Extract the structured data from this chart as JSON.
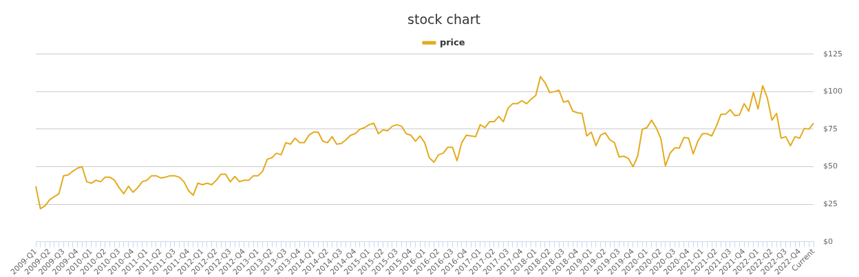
{
  "chart_data": {
    "type": "line",
    "title": "stock chart",
    "categories": [
      "2009-Q1",
      null,
      null,
      "2009-Q2",
      null,
      null,
      "2009-Q3",
      null,
      null,
      "2009-Q4",
      null,
      null,
      "2010-Q1",
      null,
      null,
      "2010-Q2",
      null,
      null,
      "2010-Q3",
      null,
      null,
      "2010-Q4",
      null,
      null,
      "2011-Q1",
      null,
      null,
      "2011-Q2",
      null,
      null,
      "2011-Q3",
      null,
      null,
      "2011-Q4",
      null,
      null,
      "2012-Q1",
      null,
      null,
      "2012-Q2",
      null,
      null,
      "2012-Q3",
      null,
      null,
      "2012-Q4",
      null,
      null,
      "2013-Q1",
      null,
      null,
      "2013-Q2",
      null,
      null,
      "2013-Q3",
      null,
      null,
      "2013-Q4",
      null,
      null,
      "2014-Q1",
      null,
      null,
      "2014-Q2",
      null,
      null,
      "2014-Q3",
      null,
      null,
      "2014-Q4",
      null,
      null,
      "2015-Q1",
      null,
      null,
      "2015-Q2",
      null,
      null,
      "2015-Q3",
      null,
      null,
      "2015-Q4",
      null,
      null,
      "2016-Q1",
      null,
      null,
      "2016-Q2",
      null,
      null,
      "2016-Q3",
      null,
      null,
      "2016-Q4",
      null,
      null,
      "2017-Q1",
      null,
      null,
      "2017-Q2",
      null,
      null,
      "2017-Q3",
      null,
      null,
      "2017-Q4",
      null,
      null,
      "2018-Q1",
      null,
      null,
      "2018-Q2",
      null,
      null,
      "2018-Q3",
      null,
      null,
      "2018-Q4",
      null,
      null,
      "2019-Q1",
      null,
      null,
      "2019-Q2",
      null,
      null,
      "2019-Q3",
      null,
      null,
      "2019-Q4",
      null,
      null,
      "2020-Q1",
      null,
      null,
      "2020-Q2",
      null,
      null,
      "2020-Q3",
      null,
      null,
      "2020-Q4",
      null,
      null,
      "2021-Q1",
      null,
      null,
      "2021-Q2",
      null,
      null,
      "2021-Q3",
      null,
      null,
      "2021-Q4",
      null,
      null,
      "2022-Q1",
      null,
      null,
      "2022-Q2",
      null,
      null,
      "2022-Q3",
      null,
      null,
      "2022-Q4",
      null,
      null,
      "Current"
    ],
    "series": [
      {
        "name": "price",
        "color": "#e3aa1c",
        "values": [
          37,
          22,
          24,
          28,
          30,
          32,
          44,
          44.5,
          47,
          49,
          50,
          40,
          39,
          41,
          40,
          43,
          43,
          41,
          36,
          32,
          37,
          33,
          36,
          40,
          41,
          44,
          44,
          42.5,
          43,
          44,
          44,
          43,
          40,
          34,
          31,
          39,
          38,
          39,
          38,
          41,
          45,
          45,
          40,
          43.5,
          40,
          41,
          41,
          44,
          44,
          47,
          55,
          56,
          59,
          58,
          66,
          65,
          69,
          66,
          66,
          71,
          73,
          73,
          67,
          66,
          70,
          65,
          65.5,
          68,
          71,
          72,
          75,
          76,
          78,
          79,
          72,
          74.5,
          74,
          77,
          78,
          77,
          72,
          71,
          67,
          70.5,
          66,
          56,
          53,
          58,
          59,
          63,
          63,
          54,
          66,
          71,
          70.5,
          70,
          78,
          76,
          80,
          80,
          83.5,
          80,
          89,
          92,
          92,
          94,
          92,
          95,
          97.5,
          110,
          106,
          99.5,
          100,
          101,
          93,
          94,
          87,
          86,
          85.5,
          70.5,
          73,
          64,
          71,
          72.5,
          68,
          66,
          56.5,
          57,
          55.5,
          50,
          57,
          75,
          76,
          81,
          76,
          69,
          50.5,
          59,
          62.5,
          62.5,
          69.5,
          69,
          58.5,
          67,
          72,
          72,
          70.5,
          77,
          85,
          85,
          88,
          84,
          84.5,
          92,
          87,
          99.5,
          88.5,
          104,
          96,
          81,
          85.5,
          69,
          70,
          64,
          70,
          69,
          75.5,
          75,
          79
        ]
      }
    ],
    "ylim": [
      0,
      125
    ],
    "yticks": [
      {
        "value": 0,
        "label": "$0"
      },
      {
        "value": 25,
        "label": "$25"
      },
      {
        "value": 50,
        "label": "$50"
      },
      {
        "value": 75,
        "label": "$75"
      },
      {
        "value": 100,
        "label": "$100"
      },
      {
        "value": 125,
        "label": "$125"
      }
    ],
    "grid": "y",
    "legend": "top",
    "marker": "none",
    "line_style": "solid"
  }
}
